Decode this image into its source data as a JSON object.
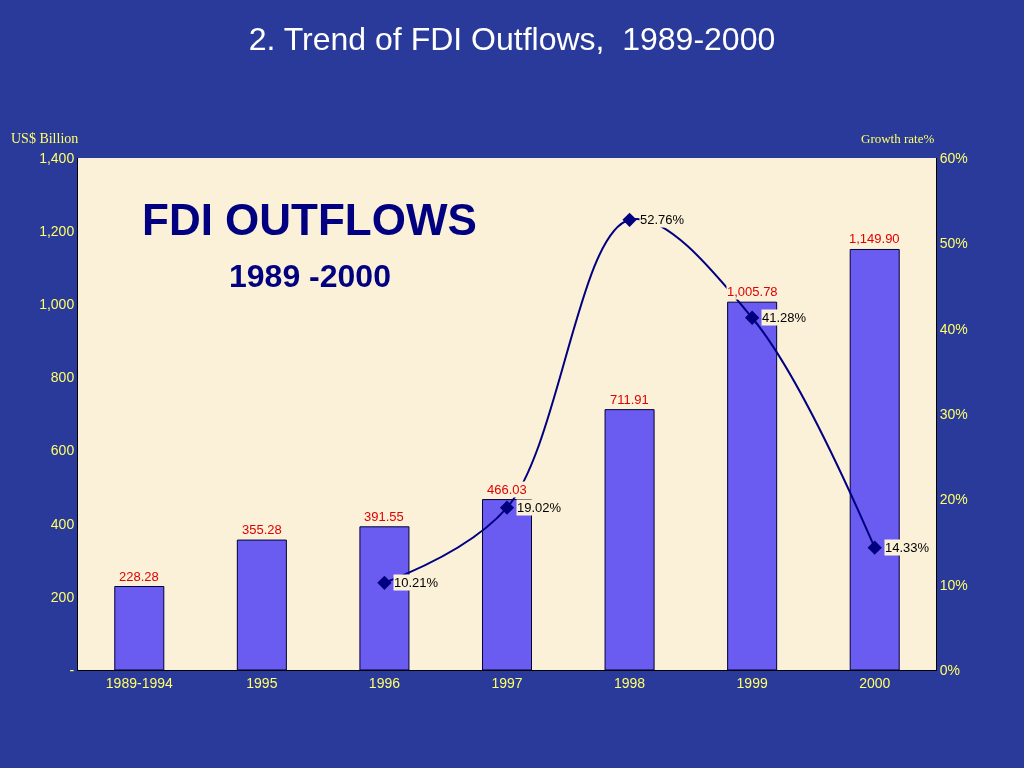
{
  "chart_data": {
    "type": "bar",
    "title": "2. Trend of FDI Outflows,  1989-2000",
    "ylabel": "US$ Billion",
    "y2label": "Growth rate%",
    "annotations": [
      "FDI OUTFLOWS",
      "1989 -2000"
    ],
    "categories": [
      "1989-1994",
      "1995",
      "1996",
      "1997",
      "1998",
      "1999",
      "2000"
    ],
    "series": [
      {
        "color": "#6a5cf0",
        "values": [
          228.28,
          355.28,
          391.55,
          466.03,
          711.91,
          1005.78,
          1149.9
        ],
        "value_labels": [
          "228.28",
          "355.28",
          "391.55",
          "466.03",
          "711.91",
          "1,005.78",
          "1,149.90"
        ]
      },
      {
        "type": "line",
        "axis": "y2",
        "color": "#000080",
        "marker": "diamond",
        "line_style": "solid",
        "values": [
          null,
          null,
          10.21,
          19.02,
          52.76,
          41.28,
          14.33
        ],
        "value_labels": [
          null,
          null,
          "10.21%",
          "19.02%",
          "52.76%",
          "41.28%",
          "14.33%"
        ]
      }
    ],
    "ylim": [
      0,
      1400
    ],
    "yticks": [
      {
        "value": 0,
        "label": "-"
      },
      {
        "value": 200,
        "label": "200"
      },
      {
        "value": 400,
        "label": "400"
      },
      {
        "value": 600,
        "label": "600"
      },
      {
        "value": 800,
        "label": "800"
      },
      {
        "value": 1000,
        "label": "1,000"
      },
      {
        "value": 1200,
        "label": "1,200"
      },
      {
        "value": 1400,
        "label": "1,400"
      }
    ],
    "y2lim": [
      0,
      60
    ],
    "y2ticks": [
      {
        "value": 0,
        "label": "0%"
      },
      {
        "value": 10,
        "label": "10%"
      },
      {
        "value": 20,
        "label": "20%"
      },
      {
        "value": 30,
        "label": "30%"
      },
      {
        "value": 40,
        "label": "40%"
      },
      {
        "value": 50,
        "label": "50%"
      },
      {
        "value": 60,
        "label": "60%"
      }
    ],
    "grid": false,
    "legend": false
  }
}
